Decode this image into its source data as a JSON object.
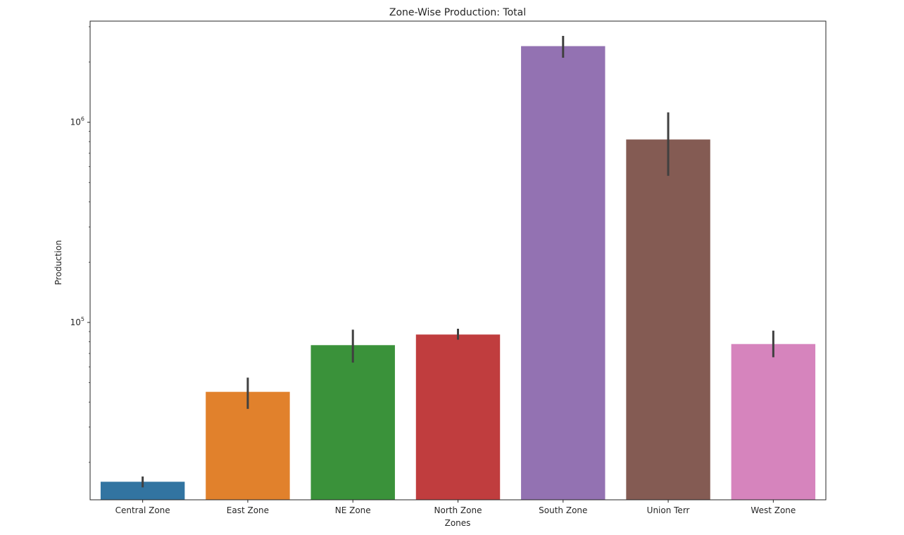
{
  "chart_data": {
    "type": "bar",
    "title": "Zone-Wise Production: Total",
    "xlabel": "Zones",
    "ylabel": "Production",
    "yscale": "log",
    "ylim": [
      13000,
      3200000
    ],
    "grid": false,
    "legend": "none",
    "categories": [
      "Central Zone",
      "East Zone",
      "NE Zone",
      "North Zone",
      "South Zone",
      "Union Terr",
      "West Zone"
    ],
    "values": [
      16000,
      45000,
      77000,
      87000,
      2400000,
      820000,
      78000
    ],
    "error_low": [
      15000,
      37000,
      63000,
      82000,
      2100000,
      540000,
      67000
    ],
    "error_high": [
      17000,
      53000,
      92000,
      93000,
      2700000,
      1120000,
      91000
    ],
    "colors": [
      "#3274a1",
      "#e1812c",
      "#3a923a",
      "#c03d3e",
      "#9372b2",
      "#845b53",
      "#d684bd"
    ],
    "error_color": "#404040",
    "y_ticks": [
      {
        "value": 100000,
        "base": "10",
        "exp": "5"
      },
      {
        "value": 1000000,
        "base": "10",
        "exp": "6"
      }
    ]
  }
}
